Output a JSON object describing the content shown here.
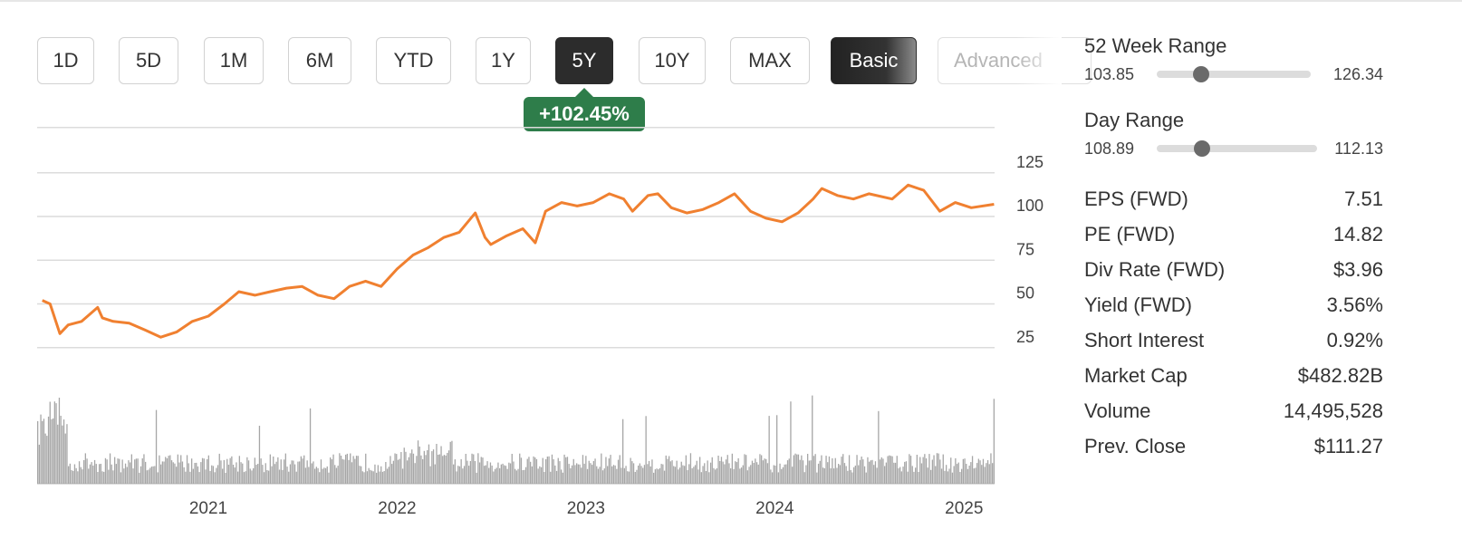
{
  "range_buttons": [
    {
      "label": "1D",
      "state": "default"
    },
    {
      "label": "5D",
      "state": "default"
    },
    {
      "label": "1M",
      "state": "default"
    },
    {
      "label": "6M",
      "state": "default"
    },
    {
      "label": "YTD",
      "state": "default"
    },
    {
      "label": "1Y",
      "state": "default"
    },
    {
      "label": "5Y",
      "state": "active"
    },
    {
      "label": "10Y",
      "state": "default"
    },
    {
      "label": "MAX",
      "state": "default"
    }
  ],
  "view_modes": {
    "basic": "Basic",
    "advanced": "Advanced"
  },
  "change_badge": {
    "text": "+102.45%",
    "color": "#2e7d4a"
  },
  "chart_data": {
    "type": "line",
    "price_color": "#f08030",
    "volume_color": "#a6a6a6",
    "y_ticks": [
      25,
      50,
      75,
      100,
      125
    ],
    "x_ticks": [
      "2021",
      "2022",
      "2023",
      "2024",
      "2025"
    ],
    "x_range": [
      "2020-02",
      "2025-03"
    ],
    "series": [
      {
        "values": [
          [
            "2020-02-15",
            52
          ],
          [
            "2020-03-01",
            50
          ],
          [
            "2020-03-20",
            33
          ],
          [
            "2020-04-05",
            38
          ],
          [
            "2020-05-01",
            40
          ],
          [
            "2020-06-01",
            48
          ],
          [
            "2020-06-10",
            42
          ],
          [
            "2020-07-01",
            40
          ],
          [
            "2020-08-01",
            39
          ],
          [
            "2020-09-01",
            35
          ],
          [
            "2020-10-01",
            31
          ],
          [
            "2020-11-01",
            34
          ],
          [
            "2020-12-01",
            40
          ],
          [
            "2021-01-01",
            43
          ],
          [
            "2021-02-01",
            50
          ],
          [
            "2021-03-01",
            57
          ],
          [
            "2021-04-01",
            55
          ],
          [
            "2021-05-01",
            57
          ],
          [
            "2021-06-01",
            59
          ],
          [
            "2021-07-01",
            60
          ],
          [
            "2021-08-01",
            55
          ],
          [
            "2021-09-01",
            53
          ],
          [
            "2021-10-01",
            60
          ],
          [
            "2021-11-01",
            63
          ],
          [
            "2021-12-01",
            60
          ],
          [
            "2022-01-01",
            70
          ],
          [
            "2022-02-01",
            78
          ],
          [
            "2022-03-01",
            82
          ],
          [
            "2022-04-01",
            88
          ],
          [
            "2022-05-01",
            91
          ],
          [
            "2022-06-01",
            102
          ],
          [
            "2022-06-20",
            88
          ],
          [
            "2022-07-01",
            84
          ],
          [
            "2022-08-01",
            89
          ],
          [
            "2022-09-01",
            93
          ],
          [
            "2022-09-25",
            85
          ],
          [
            "2022-10-15",
            103
          ],
          [
            "2022-11-15",
            108
          ],
          [
            "2022-12-15",
            106
          ],
          [
            "2023-01-15",
            108
          ],
          [
            "2023-02-15",
            113
          ],
          [
            "2023-03-15",
            110
          ],
          [
            "2023-04-01",
            103
          ],
          [
            "2023-05-01",
            112
          ],
          [
            "2023-05-20",
            113
          ],
          [
            "2023-06-15",
            105
          ],
          [
            "2023-07-15",
            102
          ],
          [
            "2023-08-15",
            104
          ],
          [
            "2023-09-15",
            108
          ],
          [
            "2023-10-15",
            113
          ],
          [
            "2023-11-15",
            103
          ],
          [
            "2023-12-15",
            99
          ],
          [
            "2024-01-15",
            97
          ],
          [
            "2024-02-15",
            102
          ],
          [
            "2024-03-15",
            110
          ],
          [
            "2024-04-01",
            116
          ],
          [
            "2024-05-01",
            112
          ],
          [
            "2024-06-01",
            110
          ],
          [
            "2024-07-01",
            113
          ],
          [
            "2024-08-15",
            110
          ],
          [
            "2024-09-15",
            118
          ],
          [
            "2024-10-15",
            115
          ],
          [
            "2024-11-15",
            103
          ],
          [
            "2024-12-15",
            108
          ],
          [
            "2025-01-15",
            105
          ],
          [
            "2025-02-28",
            107
          ]
        ]
      }
    ]
  },
  "week52_range": {
    "title": "52 Week Range",
    "low": "103.85",
    "high": "126.34",
    "position": 0.29
  },
  "day_range": {
    "title": "Day Range",
    "low": "108.89",
    "high": "112.13",
    "position": 0.28
  },
  "stats": [
    {
      "label": "EPS (FWD)",
      "value": "7.51"
    },
    {
      "label": "PE (FWD)",
      "value": "14.82"
    },
    {
      "label": "Div Rate (FWD)",
      "value": "$3.96"
    },
    {
      "label": "Yield (FWD)",
      "value": "3.56%"
    },
    {
      "label": "Short Interest",
      "value": "0.92%"
    },
    {
      "label": "Market Cap",
      "value": "$482.82B"
    },
    {
      "label": "Volume",
      "value": "14,495,528"
    },
    {
      "label": "Prev. Close",
      "value": "$111.27"
    }
  ]
}
